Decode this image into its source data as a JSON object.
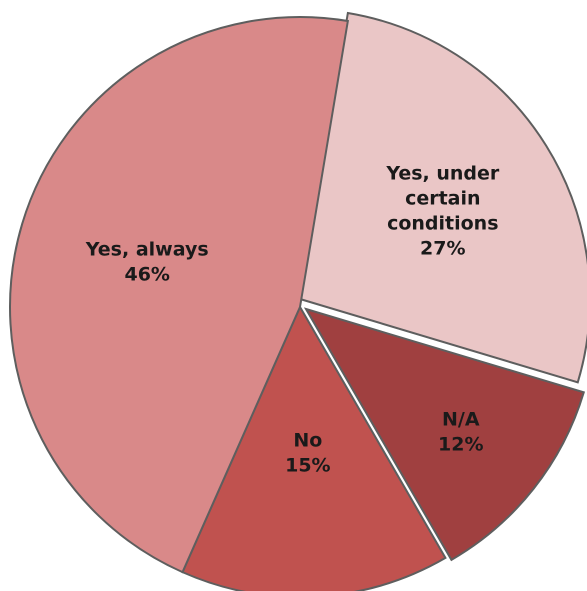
{
  "chart_data": {
    "type": "pie",
    "title": "",
    "slices": [
      {
        "label_lines": [
          "Yes, under",
          "certain",
          "conditions"
        ],
        "percent_text": "27%",
        "value": 27,
        "color": "#eac6c6",
        "label_color": "dark"
      },
      {
        "label_lines": [
          "N/A"
        ],
        "percent_text": "12%",
        "value": 12,
        "color": "#a04040",
        "label_color": "light"
      },
      {
        "label_lines": [
          "No"
        ],
        "percent_text": "15%",
        "value": 15,
        "color": "#c0524f",
        "label_color": "light"
      },
      {
        "label_lines": [
          "Yes, always"
        ],
        "percent_text": "46%",
        "value": 46,
        "color": "#d98989",
        "label_color": "light"
      }
    ]
  }
}
